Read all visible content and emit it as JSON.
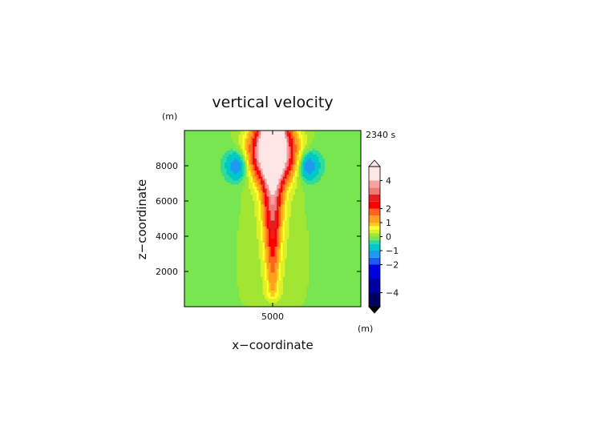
{
  "chart_data": {
    "type": "heatmap",
    "title": "vertical velocity",
    "time_label": "2340 s",
    "xlabel": "x−coordinate",
    "ylabel": "z−coordinate",
    "x_unit": "(m)",
    "y_unit": "(m)",
    "xlim": [
      0,
      10000
    ],
    "ylim": [
      0,
      10000
    ],
    "x_ticks": [
      {
        "value": 5000,
        "label": "5000"
      }
    ],
    "y_ticks": [
      {
        "value": 2000,
        "label": "2000"
      },
      {
        "value": 4000,
        "label": "4000"
      },
      {
        "value": 6000,
        "label": "6000"
      },
      {
        "value": 8000,
        "label": "8000"
      }
    ],
    "field": {
      "description": "updraft plume centred at x=5000 m, max above 4 m/s near z=8500 m; weak downdrafts on both flanks near z=8000 m",
      "plume_center_x": 5000,
      "cap_center_z": 8600,
      "max_value": 5,
      "downdraft_min": -1.5,
      "downdraft_centers": [
        [
          3000,
          8000
        ],
        [
          7000,
          8000
        ]
      ]
    },
    "colorbar": {
      "range": [
        -5,
        5
      ],
      "tick_labels": [
        {
          "value": 4,
          "label": "4"
        },
        {
          "value": 2,
          "label": "2"
        },
        {
          "value": 1,
          "label": "1"
        },
        {
          "value": 0,
          "label": "0"
        },
        {
          "value": -1,
          "label": "−1"
        },
        {
          "value": -2,
          "label": "−2"
        },
        {
          "value": -4,
          "label": "−4"
        }
      ],
      "levels": [
        {
          "min": -5,
          "max": -4,
          "color": "#000060"
        },
        {
          "min": -4,
          "max": -3,
          "color": "#0000a0"
        },
        {
          "min": -3,
          "max": -2,
          "color": "#0000e0"
        },
        {
          "min": -2,
          "max": -1.5,
          "color": "#1e5af0"
        },
        {
          "min": -1.5,
          "max": -1,
          "color": "#1e9bf0"
        },
        {
          "min": -1,
          "max": -0.5,
          "color": "#00c8c8"
        },
        {
          "min": -0.5,
          "max": -0.25,
          "color": "#32dc96"
        },
        {
          "min": -0.25,
          "max": 0,
          "color": "#78e650"
        },
        {
          "min": 0,
          "max": 0.25,
          "color": "#a0e632"
        },
        {
          "min": 0.25,
          "max": 0.5,
          "color": "#dcf028"
        },
        {
          "min": 0.5,
          "max": 0.75,
          "color": "#ffff28"
        },
        {
          "min": 0.75,
          "max": 1,
          "color": "#ffc81e"
        },
        {
          "min": 1,
          "max": 1.5,
          "color": "#ffa01e"
        },
        {
          "min": 1.5,
          "max": 2,
          "color": "#ff641e"
        },
        {
          "min": 2,
          "max": 2.5,
          "color": "#ff0000"
        },
        {
          "min": 2.5,
          "max": 3,
          "color": "#e61e1e"
        },
        {
          "min": 3,
          "max": 3.5,
          "color": "#f07878"
        },
        {
          "min": 3.5,
          "max": 4,
          "color": "#faa0a0"
        },
        {
          "min": 4,
          "max": 5,
          "color": "#ffe6e6"
        }
      ]
    }
  }
}
